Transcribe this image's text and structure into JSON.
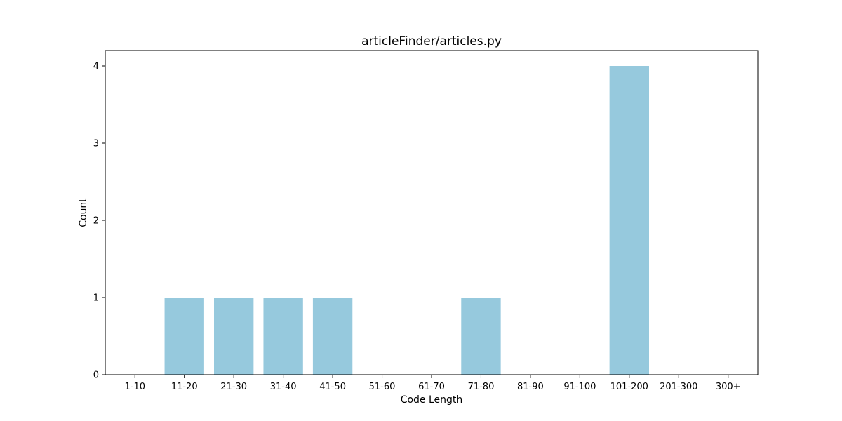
{
  "chart_data": {
    "type": "bar",
    "title": "articleFinder/articles.py",
    "xlabel": "Code Length",
    "ylabel": "Count",
    "categories": [
      "1-10",
      "11-20",
      "21-30",
      "31-40",
      "41-50",
      "51-60",
      "61-70",
      "71-80",
      "81-90",
      "91-100",
      "101-200",
      "201-300",
      "300+"
    ],
    "values": [
      0,
      1,
      1,
      1,
      1,
      0,
      0,
      1,
      0,
      0,
      4,
      0,
      0
    ],
    "ylim": [
      0,
      4.2
    ],
    "yticks": [
      0,
      1,
      2,
      3,
      4
    ],
    "bar_color": "#96c9dd",
    "grid": false,
    "legend": "none"
  }
}
